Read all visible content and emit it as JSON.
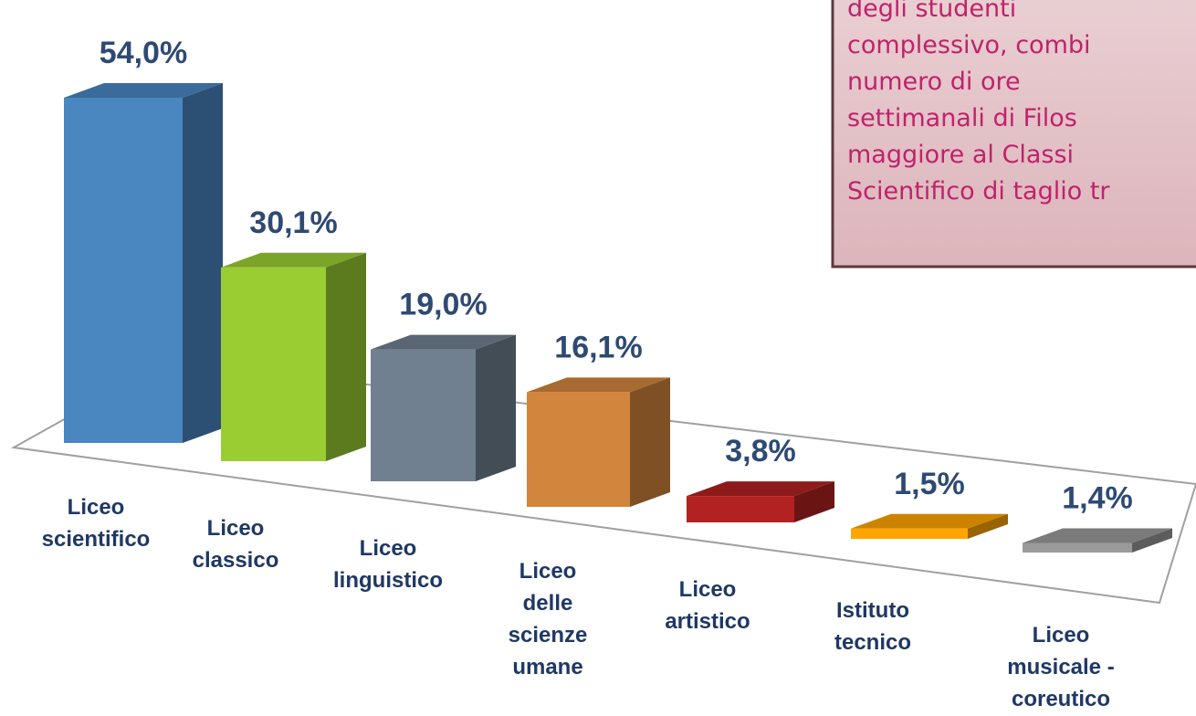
{
  "chart_data": {
    "type": "bar3d",
    "categories": [
      "Liceo\nscientifico",
      "Liceo\nclassico",
      "Liceo\nlinguistico",
      "Liceo\ndelle\nscienze\numane",
      "Liceo\nartistico",
      "Istituto\ntecnico",
      "Liceo\nmusicale -\ncoreutico"
    ],
    "values": [
      54.0,
      30.1,
      19.0,
      16.1,
      3.8,
      1.5,
      1.4
    ],
    "value_labels": [
      "54,0%",
      "30,1%",
      "19,0%",
      "16,1%",
      "3,8%",
      "1,5%",
      "1,4%"
    ],
    "colors": [
      "#4a86c0",
      "#9acd32",
      "#708090",
      "#d2853c",
      "#b22222",
      "#ffa500",
      "#9a9a9a"
    ],
    "annotation": [
      "degli    studenti",
      "complessivo, combi",
      "numero   di   ore",
      "settimanali di Filos",
      "maggiore al Classi",
      "Scientifico di taglio tr"
    ]
  }
}
